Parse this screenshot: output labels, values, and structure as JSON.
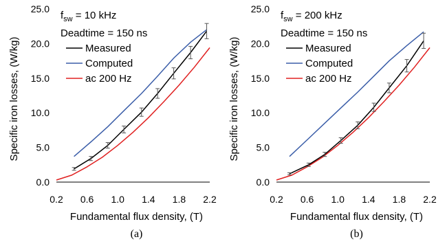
{
  "figure": {
    "panels": [
      "(a)",
      "(b)"
    ]
  },
  "chart_data": [
    {
      "type": "line",
      "caption": "(a)",
      "xlabel": "Fundamental flux density, (T)",
      "ylabel": "Specific iron losses, (W/kg)",
      "xlim": [
        0.2,
        2.2
      ],
      "ylim": [
        0,
        25
      ],
      "xticks": [
        "0.2",
        "0.6",
        "1.0",
        "1.4",
        "1.8",
        "2.2"
      ],
      "yticks": [
        "0.0",
        "5.0",
        "10.0",
        "15.0",
        "20.0",
        "25.0"
      ],
      "grid": false,
      "legend_position": "top-left",
      "annotations": {
        "fsw_label": "f",
        "fsw_sub": "sw",
        "fsw_value": " = 10 kHz",
        "deadtime": "Deadtime = 150 ns"
      },
      "series": [
        {
          "name": "Measured",
          "color": "#000000",
          "x": [
            0.43,
            0.65,
            0.87,
            1.08,
            1.31,
            1.52,
            1.73,
            1.95,
            2.16
          ],
          "y": [
            1.9,
            3.4,
            5.3,
            7.6,
            10.1,
            12.8,
            15.7,
            18.7,
            21.8
          ],
          "err": [
            0.2,
            0.3,
            0.4,
            0.5,
            0.6,
            0.7,
            0.8,
            0.9,
            1.1
          ]
        },
        {
          "name": "Computed",
          "color": "#3a5da8",
          "x": [
            0.43,
            0.65,
            0.87,
            1.08,
            1.31,
            1.52,
            1.73,
            1.95,
            2.16
          ],
          "y": [
            3.7,
            5.8,
            8.0,
            10.3,
            12.8,
            15.3,
            17.9,
            20.2,
            22.0
          ]
        },
        {
          "name": "ac 200 Hz",
          "color": "#e02020",
          "x": [
            0.2,
            0.4,
            0.6,
            0.8,
            1.0,
            1.2,
            1.4,
            1.6,
            1.8,
            2.0,
            2.2
          ],
          "y": [
            0.3,
            1.0,
            2.2,
            3.6,
            5.3,
            7.2,
            9.3,
            11.6,
            14.0,
            16.6,
            19.4
          ]
        }
      ]
    },
    {
      "type": "line",
      "caption": "(b)",
      "xlabel": "Fundamental flux density, (T)",
      "ylabel": "Specific iron losses, (W/kg)",
      "xlim": [
        0.2,
        2.2
      ],
      "ylim": [
        0,
        25
      ],
      "xticks": [
        "0.2",
        "0.6",
        "1.0",
        "1.4",
        "1.8",
        "2.2"
      ],
      "yticks": [
        "0.0",
        "5.0",
        "10.0",
        "15.0",
        "20.0",
        "25.0"
      ],
      "grid": false,
      "legend_position": "top-left",
      "annotations": {
        "fsw_label": "f",
        "fsw_sub": "sw",
        "fsw_value": " = 200 kHz",
        "deadtime": "Deadtime = 150 ns"
      },
      "series": [
        {
          "name": "Measured",
          "color": "#000000",
          "x": [
            0.37,
            0.62,
            0.83,
            1.04,
            1.26,
            1.47,
            1.67,
            1.9,
            2.12
          ],
          "y": [
            1.2,
            2.5,
            4.0,
            6.0,
            8.2,
            10.8,
            13.6,
            16.8,
            20.4
          ],
          "err": [
            0.15,
            0.25,
            0.3,
            0.4,
            0.5,
            0.6,
            0.7,
            0.9,
            1.1
          ]
        },
        {
          "name": "Computed",
          "color": "#3a5da8",
          "x": [
            0.37,
            0.62,
            0.83,
            1.04,
            1.26,
            1.47,
            1.67,
            1.9,
            2.12
          ],
          "y": [
            3.7,
            6.3,
            8.5,
            10.7,
            13.0,
            15.3,
            17.5,
            19.7,
            21.7
          ]
        },
        {
          "name": "ac 200 Hz",
          "color": "#e02020",
          "x": [
            0.2,
            0.4,
            0.6,
            0.8,
            1.0,
            1.2,
            1.4,
            1.6,
            1.8,
            2.0,
            2.2
          ],
          "y": [
            0.3,
            1.0,
            2.2,
            3.6,
            5.3,
            7.2,
            9.3,
            11.6,
            14.0,
            16.6,
            19.4
          ]
        }
      ]
    }
  ]
}
